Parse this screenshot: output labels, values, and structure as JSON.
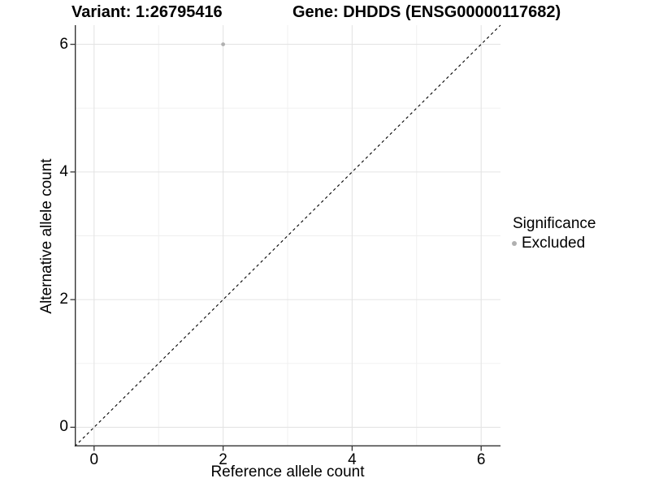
{
  "titles": {
    "variant": "Variant: 1:26795416",
    "gene": "Gene: DHDDS (ENSG00000117682)"
  },
  "axes": {
    "x_label": "Reference allele count",
    "y_label": "Alternative allele count"
  },
  "legend": {
    "title": "Significance",
    "items": [
      {
        "label": "Excluded",
        "color": "#b0b0b0"
      }
    ]
  },
  "colors": {
    "background": "#ffffff",
    "grid_major": "#e4e4e4",
    "grid_minor": "#efefef",
    "axis_line": "#333333",
    "tick_mark": "#333333",
    "text": "#000000",
    "excluded_point": "#b0b0b0",
    "reference_line": "#000000"
  },
  "chart_data": {
    "type": "scatter",
    "title_left": "Variant: 1:26795416",
    "title_right": "Gene: DHDDS (ENSG00000117682)",
    "xlabel": "Reference allele count",
    "ylabel": "Alternative allele count",
    "xlim": [
      -0.3,
      6.3
    ],
    "ylim": [
      -0.3,
      6.3
    ],
    "x_major_ticks": [
      0,
      2,
      4,
      6
    ],
    "y_major_ticks": [
      0,
      2,
      4,
      6
    ],
    "x_minor_gridlines": [
      1,
      3,
      5
    ],
    "y_minor_gridlines": [
      1,
      3,
      5
    ],
    "grid": "on",
    "legend_position": "right",
    "legend_title": "Significance",
    "series": [
      {
        "name": "Excluded",
        "color": "#b0b0b0",
        "points": [
          {
            "x": 2,
            "y": 6
          }
        ]
      }
    ],
    "reference_line": {
      "kind": "identity y=x",
      "from": [
        -0.3,
        -0.3
      ],
      "to": [
        6.3,
        6.3
      ],
      "style": "dashed",
      "color": "#000000"
    }
  }
}
